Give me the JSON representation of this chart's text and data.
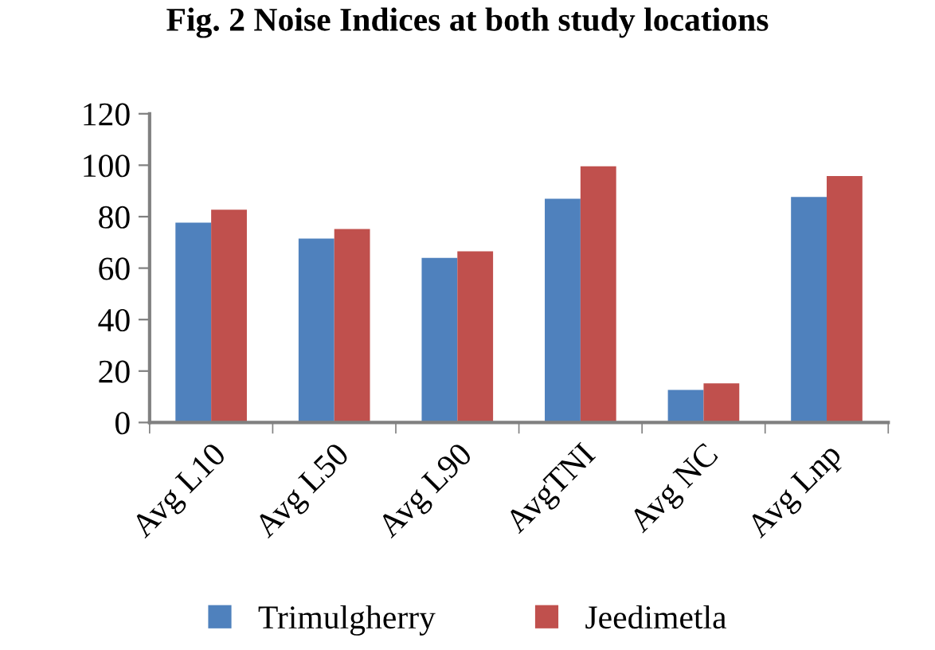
{
  "chart_data": {
    "type": "bar",
    "title": "Fig. 2 Noise Indices at both study locations",
    "categories": [
      "Avg L10",
      "Avg L50",
      "Avg L90",
      "AvgTNI",
      "Avg NC",
      "Avg Lnp"
    ],
    "series": [
      {
        "name": "Trimulgherry",
        "color": "#4f81bd",
        "values": [
          77.7,
          71.5,
          64,
          87,
          12.7,
          87.7
        ]
      },
      {
        "name": "Jeedimetla",
        "color": "#c0504d",
        "values": [
          82.7,
          75.2,
          66.5,
          99.6,
          15.2,
          95.8
        ]
      }
    ],
    "ylim": [
      0,
      120
    ],
    "yticks": [
      0,
      20,
      40,
      60,
      80,
      100,
      120
    ],
    "grid": false,
    "legend": "bottom"
  }
}
